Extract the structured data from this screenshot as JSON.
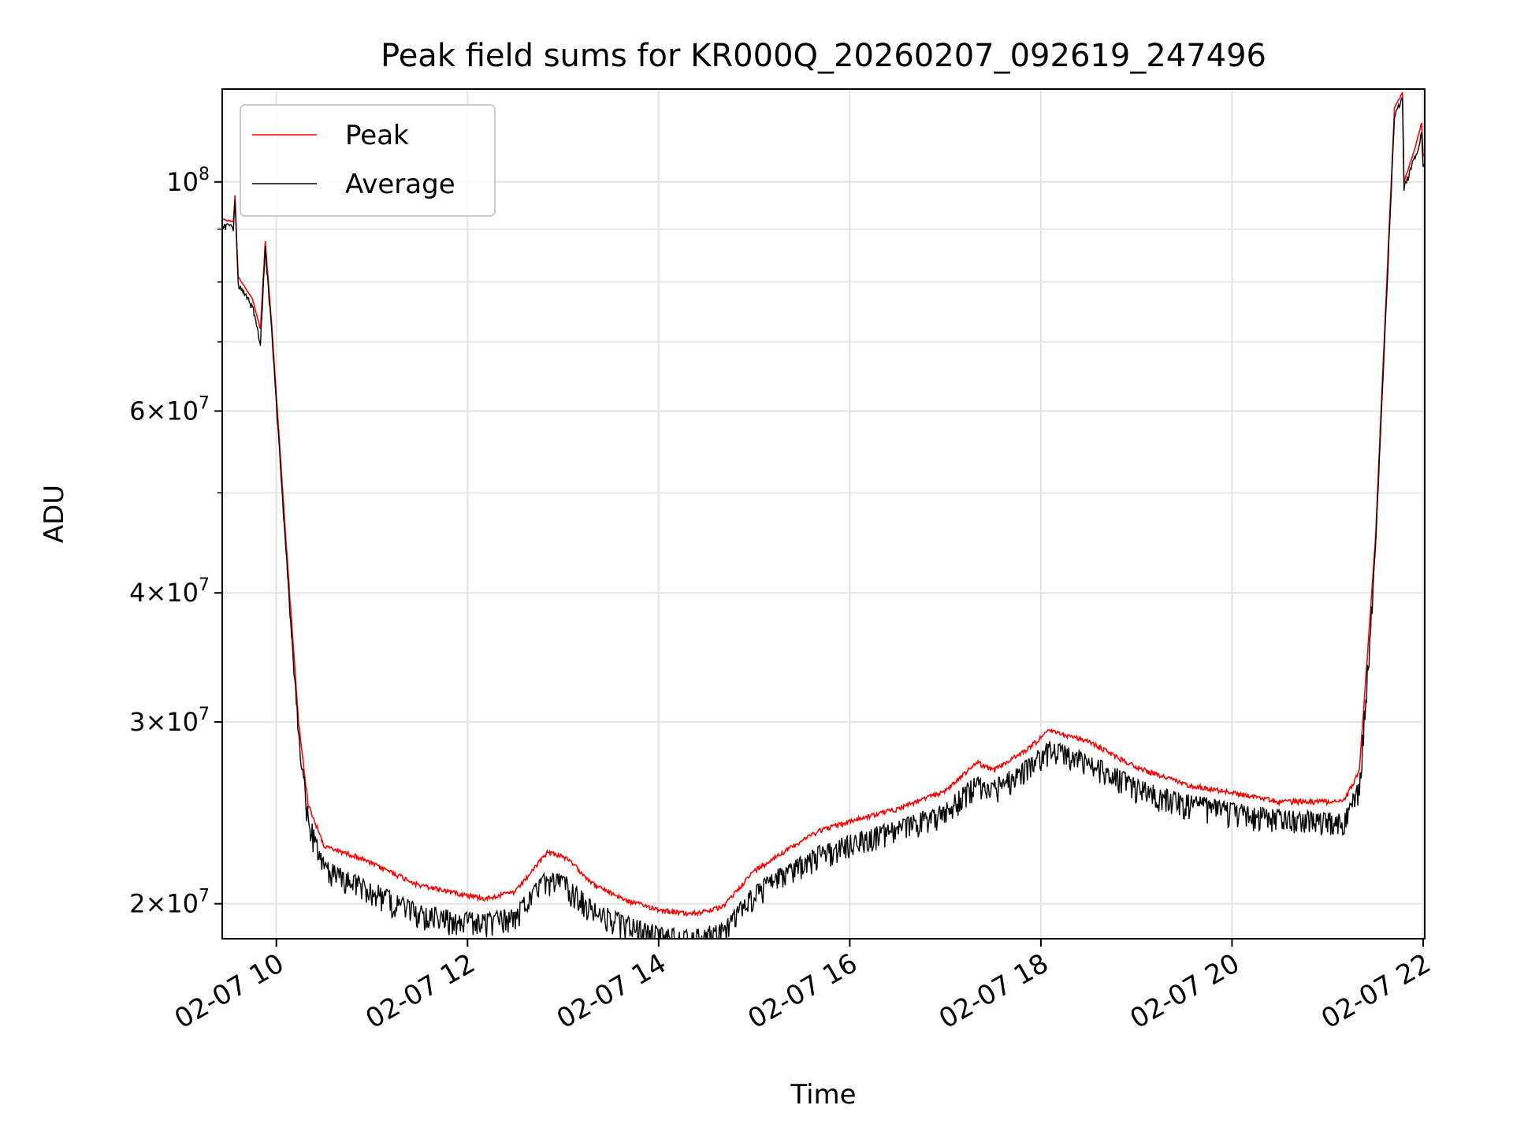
{
  "chart_data": {
    "type": "line",
    "title": "Peak field sums for KR000Q_20260207_092619_247496",
    "xlabel": "Time",
    "ylabel": "ADU",
    "yscale": "log",
    "xlim": [
      "02-07 09:26",
      "02-07 22:01"
    ],
    "ylim": [
      18500000,
      123000000
    ],
    "grid": true,
    "legend": "top-left",
    "x_ticks": [
      {
        "x": "02-07 10:00",
        "label": "02-07 10"
      },
      {
        "x": "02-07 12:00",
        "label": "02-07 12"
      },
      {
        "x": "02-07 14:00",
        "label": "02-07 14"
      },
      {
        "x": "02-07 16:00",
        "label": "02-07 16"
      },
      {
        "x": "02-07 18:00",
        "label": "02-07 18"
      },
      {
        "x": "02-07 20:00",
        "label": "02-07 20"
      },
      {
        "x": "02-07 22:00",
        "label": "02-07 22"
      }
    ],
    "y_ticks": [
      {
        "y": 20000000,
        "mant": "2",
        "exp": "7"
      },
      {
        "y": 30000000,
        "mant": "3",
        "exp": "7"
      },
      {
        "y": 40000000,
        "mant": "4",
        "exp": "7"
      },
      {
        "y": 60000000,
        "mant": "6",
        "exp": "7"
      },
      {
        "y": 100000000,
        "mant": "",
        "exp": "8"
      }
    ],
    "y_minor_ticks": [
      50000000,
      70000000,
      80000000,
      90000000
    ],
    "series": [
      {
        "name": "Peak",
        "color": "#ff0000",
        "noise": 0.01,
        "points": [
          [
            "02-07 09:26",
            92000000
          ],
          [
            "02-07 09:33",
            91500000
          ],
          [
            "02-07 09:34",
            97000000
          ],
          [
            "02-07 09:36",
            81000000
          ],
          [
            "02-07 09:45",
            77000000
          ],
          [
            "02-07 09:50",
            72000000
          ],
          [
            "02-07 09:53",
            87500000
          ],
          [
            "02-07 09:57",
            73000000
          ],
          [
            "02-07 10:06",
            45000000
          ],
          [
            "02-07 10:14",
            30000000
          ],
          [
            "02-07 10:20",
            25000000
          ],
          [
            "02-07 10:30",
            22800000
          ],
          [
            "02-07 10:50",
            22300000
          ],
          [
            "02-07 11:10",
            21600000
          ],
          [
            "02-07 11:30",
            20900000
          ],
          [
            "02-07 11:50",
            20600000
          ],
          [
            "02-07 12:10",
            20300000
          ],
          [
            "02-07 12:30",
            20600000
          ],
          [
            "02-07 12:50",
            22500000
          ],
          [
            "02-07 13:00",
            22300000
          ],
          [
            "02-07 13:05",
            22000000
          ],
          [
            "02-07 13:20",
            20900000
          ],
          [
            "02-07 13:40",
            20200000
          ],
          [
            "02-07 14:00",
            19800000
          ],
          [
            "02-07 14:20",
            19600000
          ],
          [
            "02-07 14:40",
            19900000
          ],
          [
            "02-07 15:00",
            21600000
          ],
          [
            "02-07 15:20",
            22600000
          ],
          [
            "02-07 15:40",
            23600000
          ],
          [
            "02-07 16:00",
            24100000
          ],
          [
            "02-07 16:30",
            24800000
          ],
          [
            "02-07 17:00",
            25800000
          ],
          [
            "02-07 17:20",
            27500000
          ],
          [
            "02-07 17:30",
            27000000
          ],
          [
            "02-07 17:50",
            28200000
          ],
          [
            "02-07 18:05",
            29500000
          ],
          [
            "02-07 18:30",
            28800000
          ],
          [
            "02-07 19:00",
            27200000
          ],
          [
            "02-07 19:30",
            26200000
          ],
          [
            "02-07 20:00",
            25700000
          ],
          [
            "02-07 20:30",
            25200000
          ],
          [
            "02-07 21:10",
            25200000
          ],
          [
            "02-07 21:20",
            27000000
          ],
          [
            "02-07 21:30",
            45000000
          ],
          [
            "02-07 21:42",
            118000000
          ],
          [
            "02-07 21:47",
            122000000
          ],
          [
            "02-07 21:48",
            100000000
          ],
          [
            "02-07 21:55",
            108000000
          ],
          [
            "02-07 21:59",
            114000000
          ],
          [
            "02-07 22:00",
            106000000
          ]
        ]
      },
      {
        "name": "Average",
        "color": "#000000",
        "noise": 0.055,
        "points": [
          [
            "02-07 09:26",
            91000000
          ],
          [
            "02-07 09:33",
            90500000
          ],
          [
            "02-07 09:34",
            96000000
          ],
          [
            "02-07 09:36",
            80000000
          ],
          [
            "02-07 09:45",
            76000000
          ],
          [
            "02-07 09:50",
            70000000
          ],
          [
            "02-07 09:53",
            86500000
          ],
          [
            "02-07 09:57",
            72000000
          ],
          [
            "02-07 10:06",
            44000000
          ],
          [
            "02-07 10:14",
            29500000
          ],
          [
            "02-07 10:20",
            24500000
          ],
          [
            "02-07 10:30",
            22000000
          ],
          [
            "02-07 10:50",
            21300000
          ],
          [
            "02-07 11:10",
            20600000
          ],
          [
            "02-07 11:30",
            19900000
          ],
          [
            "02-07 11:50",
            19700000
          ],
          [
            "02-07 12:10",
            19500000
          ],
          [
            "02-07 12:30",
            19800000
          ],
          [
            "02-07 12:50",
            21500000
          ],
          [
            "02-07 13:00",
            21300000
          ],
          [
            "02-07 13:05",
            21000000
          ],
          [
            "02-07 13:20",
            20000000
          ],
          [
            "02-07 13:40",
            19400000
          ],
          [
            "02-07 14:00",
            19000000
          ],
          [
            "02-07 14:20",
            18800000
          ],
          [
            "02-07 14:40",
            19100000
          ],
          [
            "02-07 15:00",
            20800000
          ],
          [
            "02-07 15:20",
            21800000
          ],
          [
            "02-07 15:40",
            22700000
          ],
          [
            "02-07 16:00",
            23300000
          ],
          [
            "02-07 16:30",
            24000000
          ],
          [
            "02-07 17:00",
            25000000
          ],
          [
            "02-07 17:20",
            26600000
          ],
          [
            "02-07 17:30",
            26300000
          ],
          [
            "02-07 17:50",
            27400000
          ],
          [
            "02-07 18:05",
            28700000
          ],
          [
            "02-07 18:30",
            27900000
          ],
          [
            "02-07 19:00",
            26400000
          ],
          [
            "02-07 19:30",
            25500000
          ],
          [
            "02-07 20:00",
            25000000
          ],
          [
            "02-07 20:30",
            24600000
          ],
          [
            "02-07 21:10",
            24500000
          ],
          [
            "02-07 21:20",
            26300000
          ],
          [
            "02-07 21:30",
            44000000
          ],
          [
            "02-07 21:42",
            116000000
          ],
          [
            "02-07 21:47",
            121000000
          ],
          [
            "02-07 21:48",
            99000000
          ],
          [
            "02-07 21:55",
            106000000
          ],
          [
            "02-07 21:59",
            112000000
          ],
          [
            "02-07 22:00",
            104000000
          ]
        ]
      }
    ]
  }
}
